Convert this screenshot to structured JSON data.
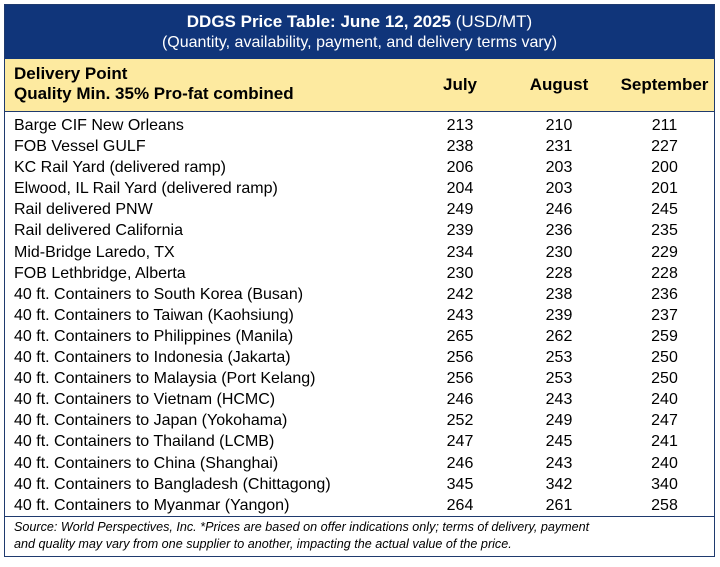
{
  "title": {
    "bold": "DDGS Price Table: June 12, 2025",
    "unit": " (USD/MT)",
    "subtitle": "(Quantity, availability, payment, and delivery terms vary)"
  },
  "header": {
    "delivery_line1": "Delivery Point",
    "delivery_line2": "Quality Min. 35% Pro-fat combined",
    "col_july": "July",
    "col_august": "August",
    "col_september": "September"
  },
  "rows": [
    {
      "name": "Barge CIF New Orleans",
      "july": "213",
      "august": "210",
      "september": "211"
    },
    {
      "name": "FOB Vessel GULF",
      "july": "238",
      "august": "231",
      "september": "227"
    },
    {
      "name": "KC Rail Yard (delivered ramp)",
      "july": "206",
      "august": "203",
      "september": "200"
    },
    {
      "name": "Elwood, IL Rail Yard (delivered ramp)",
      "july": "204",
      "august": "203",
      "september": "201"
    },
    {
      "name": "Rail delivered PNW",
      "july": "249",
      "august": "246",
      "september": "245"
    },
    {
      "name": "Rail delivered California",
      "july": "239",
      "august": "236",
      "september": "235"
    },
    {
      "name": "Mid-Bridge Laredo, TX",
      "july": "234",
      "august": "230",
      "september": "229"
    },
    {
      "name": "FOB Lethbridge, Alberta",
      "july": "230",
      "august": "228",
      "september": "228"
    },
    {
      "name": "40 ft. Containers to South Korea (Busan)",
      "july": "242",
      "august": "238",
      "september": "236"
    },
    {
      "name": "40 ft. Containers to Taiwan (Kaohsiung)",
      "july": "243",
      "august": "239",
      "september": "237"
    },
    {
      "name": "40 ft. Containers to Philippines (Manila)",
      "july": "265",
      "august": "262",
      "september": "259"
    },
    {
      "name": "40 ft. Containers to Indonesia (Jakarta)",
      "july": "256",
      "august": "253",
      "september": "250"
    },
    {
      "name": "40 ft. Containers to Malaysia (Port Kelang)",
      "july": "256",
      "august": "253",
      "september": "250"
    },
    {
      "name": "40 ft. Containers to Vietnam (HCMC)",
      "july": "246",
      "august": "243",
      "september": "240"
    },
    {
      "name": "40 ft. Containers to Japan (Yokohama)",
      "july": "252",
      "august": "249",
      "september": "247"
    },
    {
      "name": "40 ft. Containers to Thailand (LCMB)",
      "july": "247",
      "august": "245",
      "september": "241"
    },
    {
      "name": "40 ft. Containers to China (Shanghai)",
      "july": "246",
      "august": "243",
      "september": "240"
    },
    {
      "name": "40 ft. Containers to Bangladesh (Chittagong)",
      "july": "345",
      "august": "342",
      "september": "340"
    },
    {
      "name": "40 ft. Containers to Myanmar (Yangon)",
      "july": "264",
      "august": "261",
      "september": "258"
    }
  ],
  "footer": {
    "line1": "Source: World Perspectives, Inc. *Prices are based on offer indications only; terms of delivery, payment",
    "line2": "and quality may vary from one supplier to another, impacting the actual value of the price."
  },
  "colors": {
    "title_bg": "#10357a",
    "header_bg": "#fdeaa0",
    "border": "#1f3a6e"
  }
}
